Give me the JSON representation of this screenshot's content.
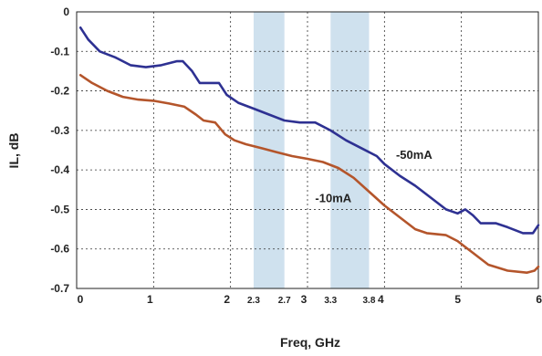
{
  "chart_data": {
    "type": "line",
    "title": "",
    "xlabel": "Freq, GHz",
    "ylabel": "IL, dB",
    "xlim": [
      0,
      6
    ],
    "ylim": [
      -0.7,
      0
    ],
    "grid": true,
    "x_ticks": [
      {
        "value": 0,
        "label": "0"
      },
      {
        "value": 1,
        "label": "1"
      },
      {
        "value": 2,
        "label": "2"
      },
      {
        "value": 3,
        "label": "3"
      },
      {
        "value": 4,
        "label": "4"
      },
      {
        "value": 5,
        "label": "5"
      },
      {
        "value": 6,
        "label": "6"
      }
    ],
    "x_minor_labels": [
      {
        "value": 2.3,
        "label": "2.3"
      },
      {
        "value": 2.7,
        "label": "2.7"
      },
      {
        "value": 3.3,
        "label": "3.3"
      },
      {
        "value": 3.8,
        "label": "3.8"
      }
    ],
    "y_ticks": [
      {
        "value": 0,
        "label": "0"
      },
      {
        "value": -0.1,
        "label": "-0.1"
      },
      {
        "value": -0.2,
        "label": "-0.2"
      },
      {
        "value": -0.3,
        "label": "-0.3"
      },
      {
        "value": -0.4,
        "label": "-0.4"
      },
      {
        "value": -0.5,
        "label": "-0.5"
      },
      {
        "value": -0.6,
        "label": "-0.6"
      },
      {
        "value": -0.7,
        "label": "-0.7"
      }
    ],
    "bands": [
      {
        "x0": 2.3,
        "x1": 2.7,
        "color": "#cfe1ee"
      },
      {
        "x0": 3.3,
        "x1": 3.8,
        "color": "#cfe1ee"
      }
    ],
    "series": [
      {
        "name": "-50mA",
        "color": "#2e3192",
        "points": [
          [
            0.05,
            -0.04
          ],
          [
            0.15,
            -0.07
          ],
          [
            0.3,
            -0.1
          ],
          [
            0.5,
            -0.115
          ],
          [
            0.7,
            -0.135
          ],
          [
            0.9,
            -0.14
          ],
          [
            1.1,
            -0.135
          ],
          [
            1.3,
            -0.125
          ],
          [
            1.38,
            -0.125
          ],
          [
            1.5,
            -0.15
          ],
          [
            1.6,
            -0.18
          ],
          [
            1.72,
            -0.18
          ],
          [
            1.85,
            -0.18
          ],
          [
            1.95,
            -0.21
          ],
          [
            2.1,
            -0.23
          ],
          [
            2.3,
            -0.245
          ],
          [
            2.5,
            -0.26
          ],
          [
            2.7,
            -0.275
          ],
          [
            2.9,
            -0.28
          ],
          [
            3.1,
            -0.28
          ],
          [
            3.3,
            -0.3
          ],
          [
            3.5,
            -0.325
          ],
          [
            3.7,
            -0.345
          ],
          [
            3.9,
            -0.365
          ],
          [
            4.0,
            -0.385
          ],
          [
            4.2,
            -0.415
          ],
          [
            4.4,
            -0.44
          ],
          [
            4.6,
            -0.47
          ],
          [
            4.8,
            -0.5
          ],
          [
            4.95,
            -0.51
          ],
          [
            5.05,
            -0.5
          ],
          [
            5.15,
            -0.515
          ],
          [
            5.25,
            -0.535
          ],
          [
            5.45,
            -0.535
          ],
          [
            5.6,
            -0.545
          ],
          [
            5.8,
            -0.56
          ],
          [
            5.93,
            -0.56
          ],
          [
            6.0,
            -0.54
          ]
        ]
      },
      {
        "name": "-10mA",
        "color": "#b4552b",
        "points": [
          [
            0.05,
            -0.16
          ],
          [
            0.2,
            -0.18
          ],
          [
            0.4,
            -0.2
          ],
          [
            0.6,
            -0.215
          ],
          [
            0.8,
            -0.222
          ],
          [
            1.0,
            -0.225
          ],
          [
            1.2,
            -0.232
          ],
          [
            1.4,
            -0.24
          ],
          [
            1.55,
            -0.26
          ],
          [
            1.65,
            -0.275
          ],
          [
            1.8,
            -0.28
          ],
          [
            1.93,
            -0.31
          ],
          [
            2.05,
            -0.325
          ],
          [
            2.2,
            -0.335
          ],
          [
            2.4,
            -0.345
          ],
          [
            2.6,
            -0.355
          ],
          [
            2.8,
            -0.365
          ],
          [
            3.0,
            -0.372
          ],
          [
            3.2,
            -0.38
          ],
          [
            3.4,
            -0.395
          ],
          [
            3.6,
            -0.42
          ],
          [
            3.8,
            -0.455
          ],
          [
            4.0,
            -0.49
          ],
          [
            4.2,
            -0.52
          ],
          [
            4.4,
            -0.55
          ],
          [
            4.55,
            -0.56
          ],
          [
            4.8,
            -0.565
          ],
          [
            4.95,
            -0.58
          ],
          [
            5.15,
            -0.61
          ],
          [
            5.35,
            -0.64
          ],
          [
            5.6,
            -0.655
          ],
          [
            5.85,
            -0.66
          ],
          [
            5.95,
            -0.655
          ],
          [
            6.0,
            -0.645
          ]
        ]
      }
    ],
    "annotations": [
      {
        "text": "-50mA",
        "x": 4.15,
        "y": -0.36
      },
      {
        "text": "-10mA",
        "x": 3.1,
        "y": -0.47
      }
    ]
  }
}
